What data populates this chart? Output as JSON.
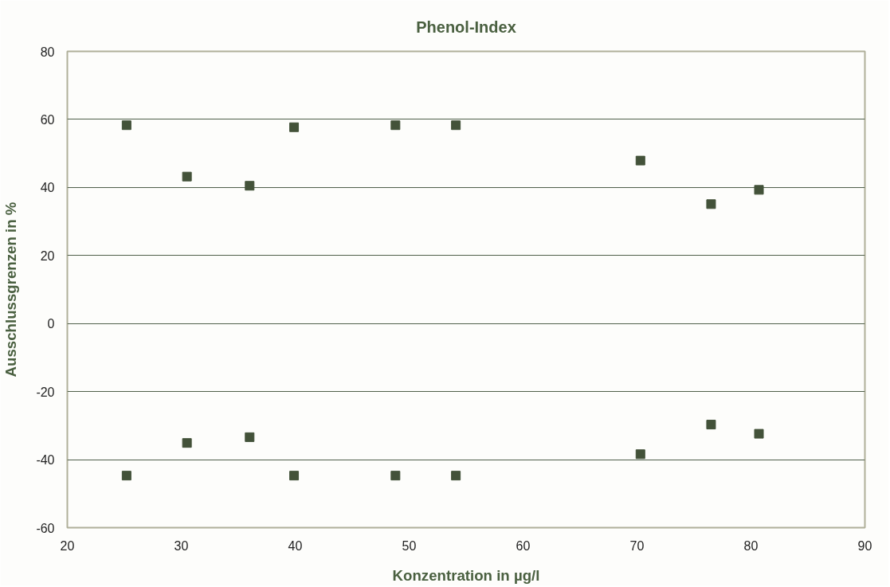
{
  "chart_data": {
    "type": "scatter",
    "title": "Phenol-Index",
    "xlabel": "Konzentration in µg/l",
    "ylabel": "Ausschlussgrenzen in %",
    "x": [
      25.2,
      30.5,
      36.0,
      39.9,
      48.8,
      54.1,
      70.3,
      76.5,
      80.7
    ],
    "series": [
      {
        "color": "#435239",
        "values": [
          58.3,
          43.2,
          40.5,
          57.7,
          58.3,
          58.3,
          47.9,
          35.1,
          39.3
        ]
      },
      {
        "color": "#435239",
        "values": [
          -44.7,
          -35.1,
          -33.4,
          -44.7,
          -44.7,
          -44.7,
          -38.4,
          -29.7,
          -32.4
        ]
      }
    ],
    "xlim": [
      20,
      90
    ],
    "xticks": [
      20,
      30,
      40,
      50,
      60,
      70,
      80,
      90
    ],
    "ylim": [
      -60,
      80
    ],
    "yticks": [
      -60,
      -40,
      -20,
      0,
      20,
      40,
      60,
      80
    ],
    "grid": "y",
    "marker": "square"
  }
}
